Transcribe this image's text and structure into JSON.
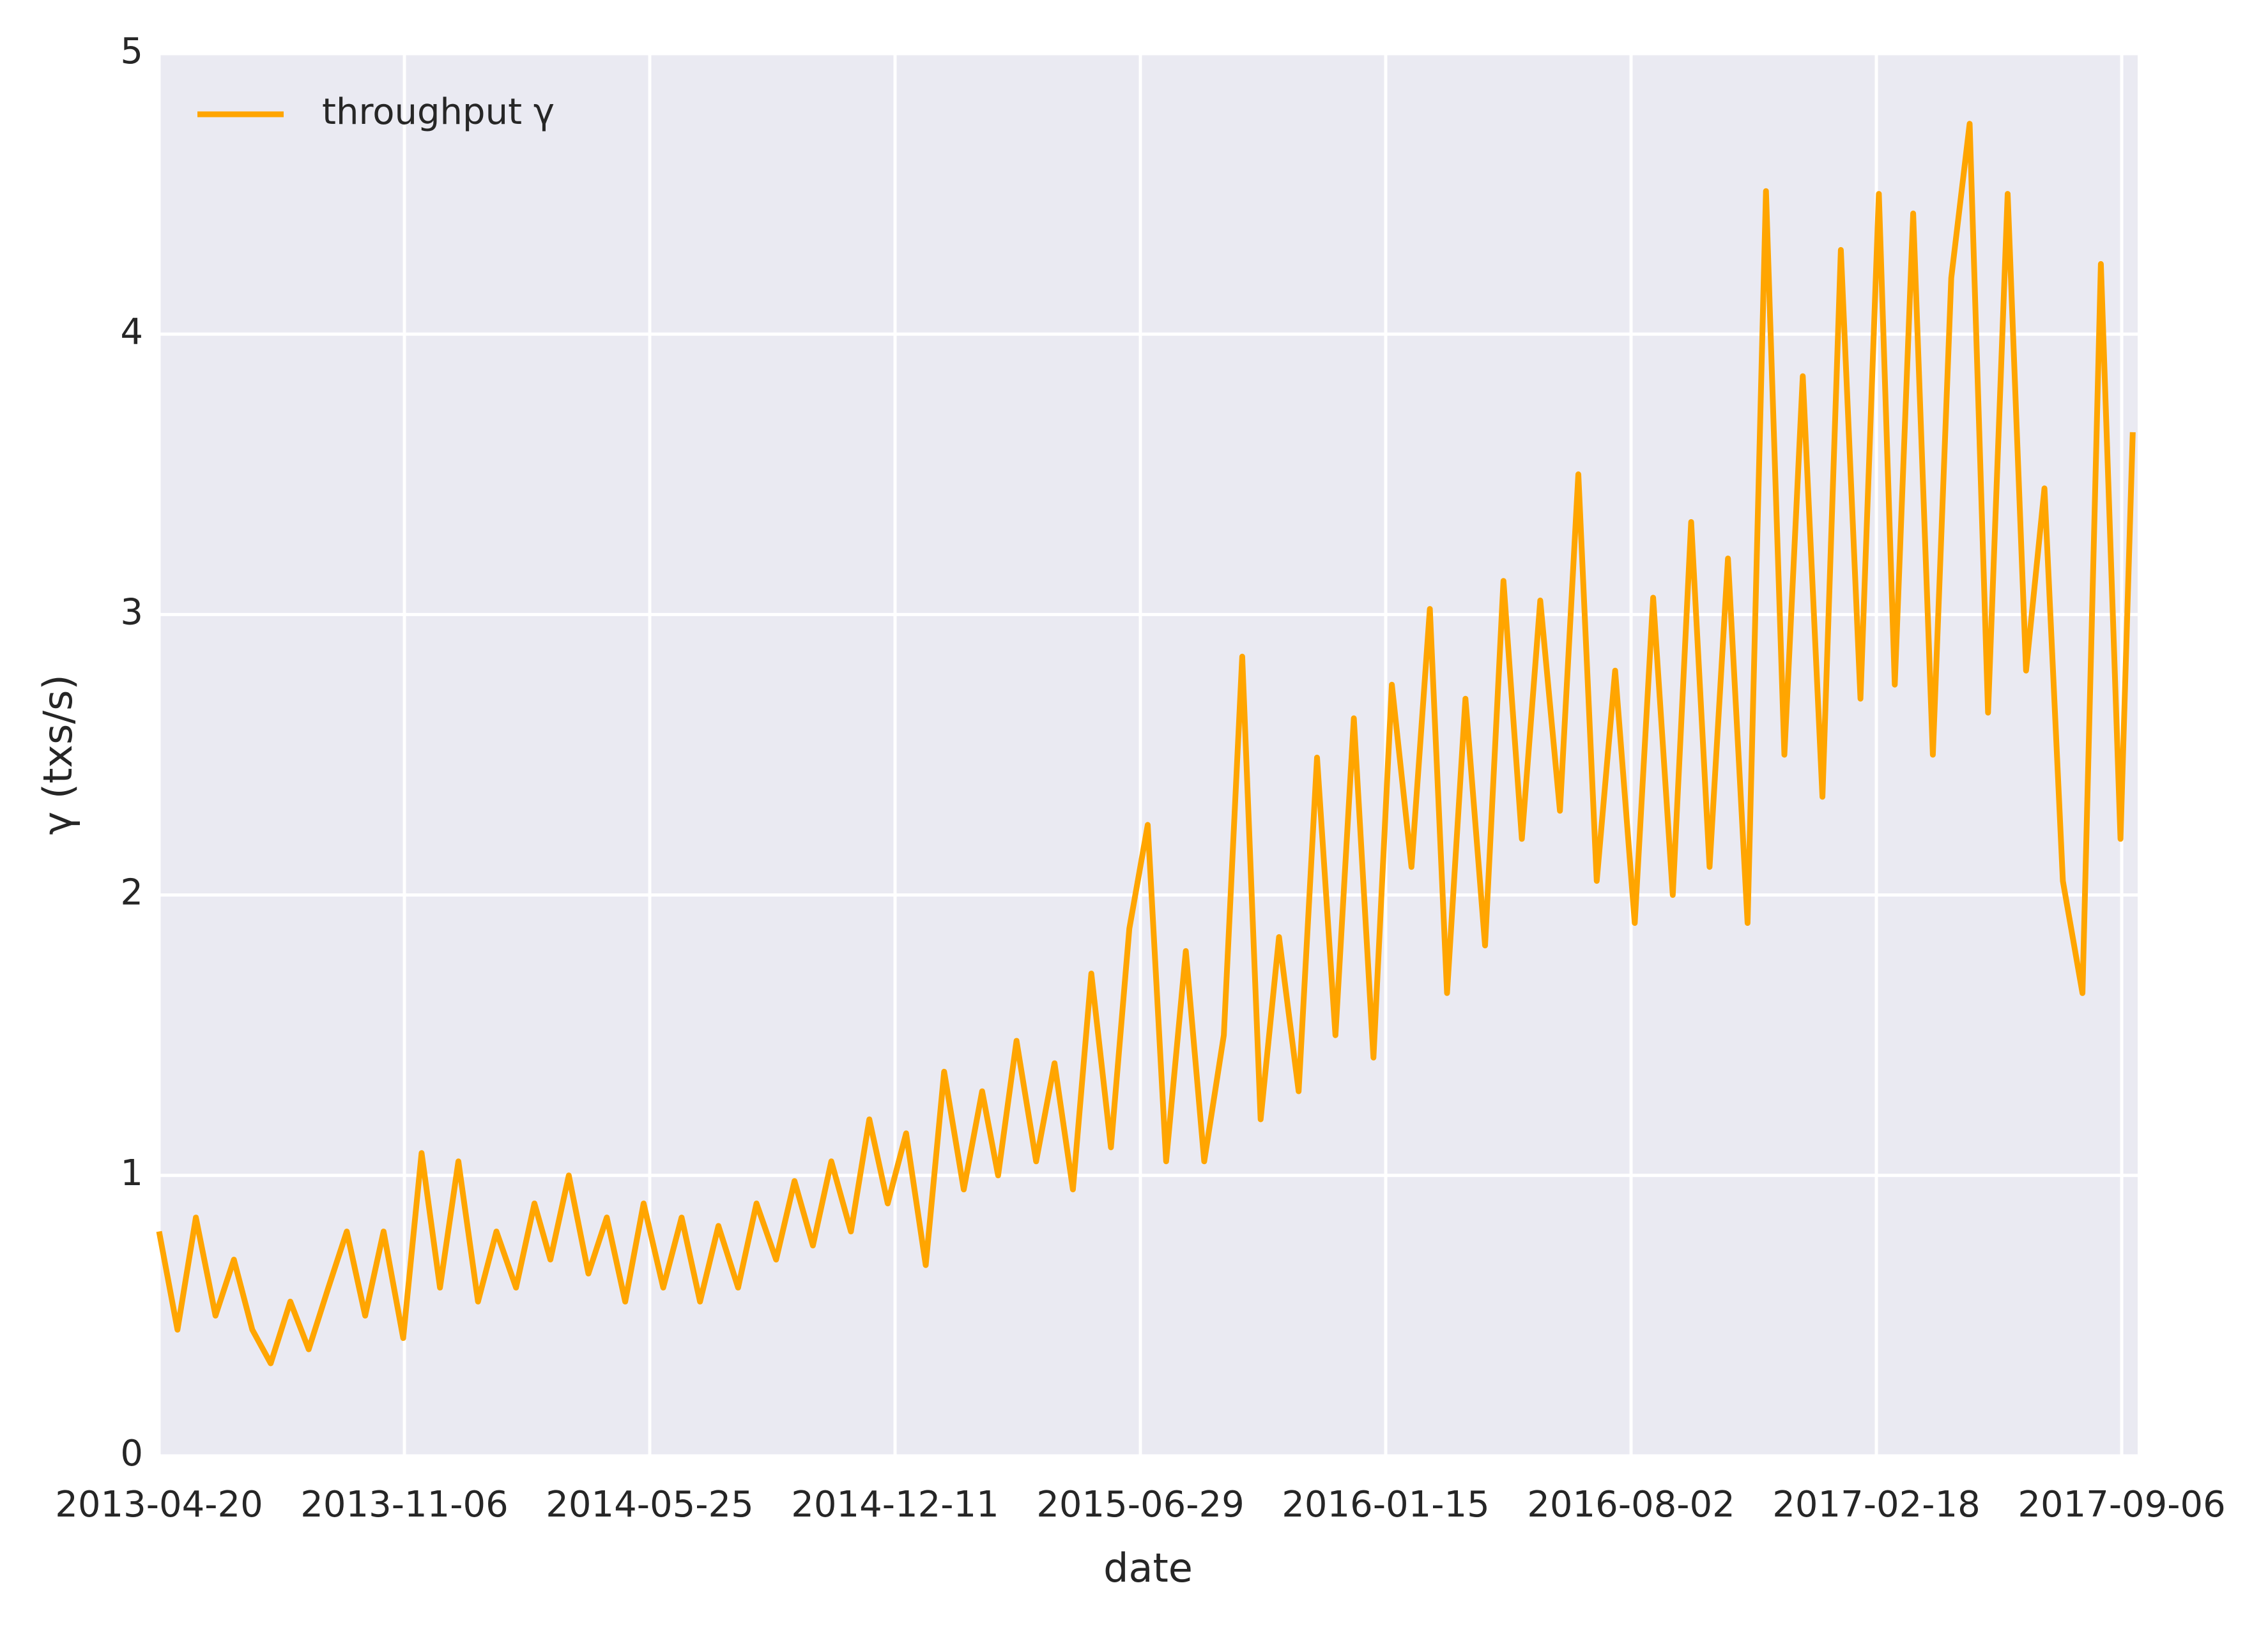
{
  "chart_data": {
    "type": "line",
    "xlabel": "date",
    "ylabel": "γ (txs/s)",
    "x": [
      "2013-04-20",
      "2013-05-05",
      "2013-05-20",
      "2013-06-05",
      "2013-06-20",
      "2013-07-05",
      "2013-07-20",
      "2013-08-05",
      "2013-08-20",
      "2013-09-05",
      "2013-09-20",
      "2013-10-05",
      "2013-10-20",
      "2013-11-05",
      "2013-11-20",
      "2013-12-05",
      "2013-12-20",
      "2014-01-05",
      "2014-01-20",
      "2014-02-05",
      "2014-02-20",
      "2014-03-05",
      "2014-03-20",
      "2014-04-05",
      "2014-04-20",
      "2014-05-05",
      "2014-05-20",
      "2014-06-05",
      "2014-06-20",
      "2014-07-05",
      "2014-07-20",
      "2014-08-05",
      "2014-08-20",
      "2014-09-05",
      "2014-09-20",
      "2014-10-05",
      "2014-10-20",
      "2014-11-05",
      "2014-11-20",
      "2014-12-05",
      "2014-12-20",
      "2015-01-05",
      "2015-01-20",
      "2015-02-05",
      "2015-02-20",
      "2015-03-05",
      "2015-03-20",
      "2015-04-05",
      "2015-04-20",
      "2015-05-05",
      "2015-05-20",
      "2015-06-05",
      "2015-06-20",
      "2015-07-05",
      "2015-07-20",
      "2015-08-05",
      "2015-08-20",
      "2015-09-05",
      "2015-09-20",
      "2015-10-05",
      "2015-10-20",
      "2015-11-05",
      "2015-11-20",
      "2015-12-05",
      "2015-12-20",
      "2016-01-05",
      "2016-01-20",
      "2016-02-05",
      "2016-02-20",
      "2016-03-05",
      "2016-03-20",
      "2016-04-05",
      "2016-04-20",
      "2016-05-05",
      "2016-05-20",
      "2016-06-05",
      "2016-06-20",
      "2016-07-05",
      "2016-07-20",
      "2016-08-05",
      "2016-08-20",
      "2016-09-05",
      "2016-09-20",
      "2016-10-05",
      "2016-10-20",
      "2016-11-05",
      "2016-11-20",
      "2016-12-05",
      "2016-12-20",
      "2017-01-05",
      "2017-01-20",
      "2017-02-05",
      "2017-02-20",
      "2017-03-05",
      "2017-03-20",
      "2017-04-05",
      "2017-04-20",
      "2017-05-05",
      "2017-05-20",
      "2017-06-05",
      "2017-06-20",
      "2017-07-05",
      "2017-07-20",
      "2017-08-05",
      "2017-08-20",
      "2017-09-05",
      "2017-09-15"
    ],
    "series": [
      {
        "name": "throughput γ",
        "color": "#ffa500",
        "values": [
          0.8,
          0.45,
          0.85,
          0.5,
          0.7,
          0.45,
          0.33,
          0.55,
          0.38,
          0.6,
          0.8,
          0.5,
          0.8,
          0.42,
          1.08,
          0.6,
          1.05,
          0.55,
          0.8,
          0.6,
          0.9,
          0.7,
          1.0,
          0.65,
          0.85,
          0.55,
          0.9,
          0.6,
          0.85,
          0.55,
          0.82,
          0.6,
          0.9,
          0.7,
          0.98,
          0.75,
          1.05,
          0.8,
          1.2,
          0.9,
          1.15,
          0.68,
          1.37,
          0.95,
          1.3,
          1.0,
          1.48,
          1.05,
          1.4,
          0.95,
          1.72,
          1.1,
          1.88,
          2.25,
          1.05,
          1.8,
          1.05,
          1.5,
          2.85,
          1.2,
          1.85,
          1.3,
          2.49,
          1.5,
          2.63,
          1.42,
          2.75,
          2.1,
          3.02,
          1.65,
          2.7,
          1.82,
          3.12,
          2.2,
          3.05,
          2.3,
          3.5,
          2.05,
          2.8,
          1.9,
          3.06,
          2.0,
          3.33,
          2.1,
          3.2,
          1.9,
          4.51,
          2.5,
          3.85,
          2.35,
          4.3,
          2.7,
          4.5,
          2.75,
          4.43,
          2.5,
          4.2,
          4.75,
          2.65,
          4.5,
          2.8,
          3.45,
          2.05,
          1.65,
          4.25,
          2.2,
          3.65
        ]
      }
    ],
    "xlim": [
      "2013-04-20",
      "2017-09-19"
    ],
    "xticks": [
      "2013-04-20",
      "2013-11-06",
      "2014-05-25",
      "2014-12-11",
      "2015-06-29",
      "2016-01-15",
      "2016-08-02",
      "2017-02-18",
      "2017-09-06"
    ],
    "ylim": [
      0,
      5
    ],
    "yticks": [
      0,
      1,
      2,
      3,
      4,
      5
    ],
    "grid": true,
    "legend": "upper left"
  }
}
